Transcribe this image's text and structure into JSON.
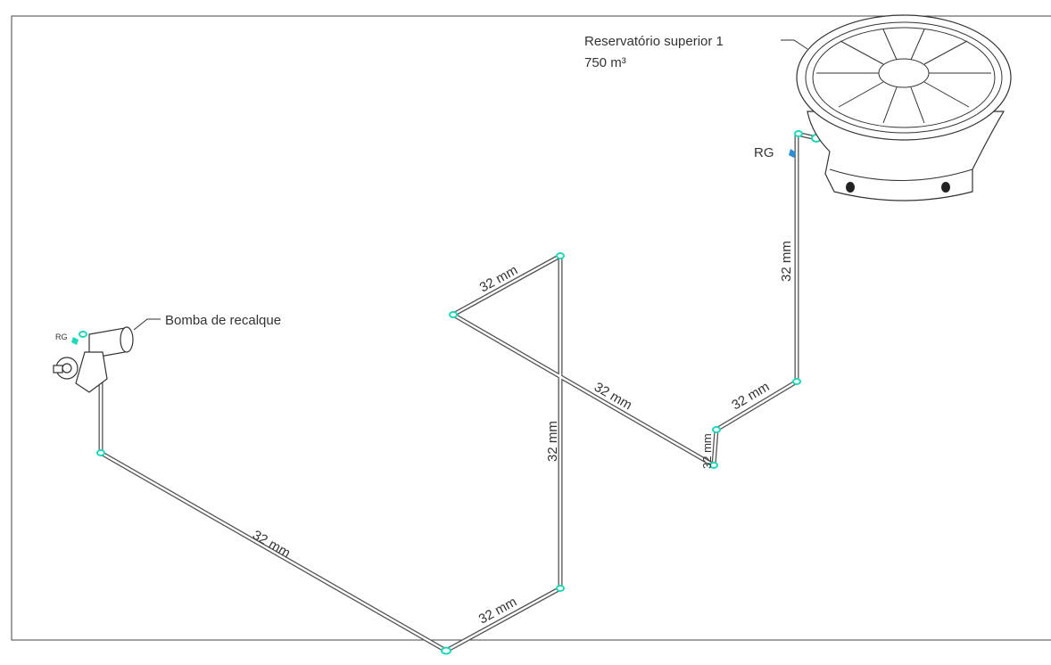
{
  "labels": {
    "reservoir_name": "Reservatório superior 1",
    "reservoir_volume": "750 m³",
    "pump_name": "Bomba de recalque",
    "valve_pump": "RG",
    "valve_reservoir": "RG"
  },
  "pipes": [
    {
      "label": "32 mm"
    },
    {
      "label": "32 mm"
    },
    {
      "label": "32 mm"
    },
    {
      "label": "32 mm"
    },
    {
      "label": "32 mm"
    },
    {
      "label": "32 mm"
    },
    {
      "label": "32 mm"
    },
    {
      "label": "32 mm"
    }
  ]
}
